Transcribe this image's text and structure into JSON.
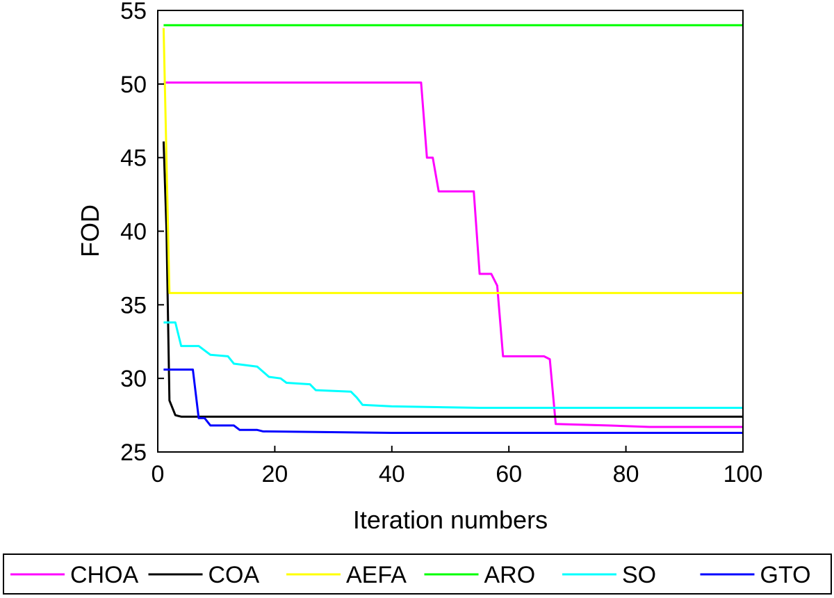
{
  "chart_data": {
    "type": "line",
    "title": "",
    "xlabel": "Iteration numbers",
    "ylabel": "FOD",
    "xlim": [
      0,
      100
    ],
    "ylim": [
      25,
      55
    ],
    "xticks": [
      0,
      20,
      40,
      60,
      80,
      100
    ],
    "yticks": [
      25,
      30,
      35,
      40,
      45,
      50,
      55
    ],
    "grid": false,
    "legend_position": "bottom",
    "series": [
      {
        "name": "CHOA",
        "color": "#ff00ff",
        "points": [
          [
            1,
            50.1
          ],
          [
            45,
            50.1
          ],
          [
            46,
            45
          ],
          [
            47,
            45
          ],
          [
            48,
            42.7
          ],
          [
            54,
            42.7
          ],
          [
            55,
            37.1
          ],
          [
            57,
            37.1
          ],
          [
            58,
            36.3
          ],
          [
            59,
            31.5
          ],
          [
            66,
            31.5
          ],
          [
            67,
            31.3
          ],
          [
            68,
            26.9
          ],
          [
            77,
            26.8
          ],
          [
            84,
            26.7
          ],
          [
            100,
            26.7
          ]
        ]
      },
      {
        "name": "COA",
        "color": "#000000",
        "points": [
          [
            1,
            46.1
          ],
          [
            1.5,
            40
          ],
          [
            2,
            28.5
          ],
          [
            3,
            27.5
          ],
          [
            4,
            27.4
          ],
          [
            100,
            27.4
          ]
        ]
      },
      {
        "name": "AEFA",
        "color": "#ffff00",
        "points": [
          [
            1,
            53.8
          ],
          [
            2,
            35.8
          ],
          [
            100,
            35.8
          ]
        ]
      },
      {
        "name": "ARO",
        "color": "#00ff00",
        "points": [
          [
            1,
            54
          ],
          [
            100,
            54
          ]
        ]
      },
      {
        "name": "SO",
        "color": "#00ffff",
        "points": [
          [
            1,
            33.8
          ],
          [
            3,
            33.8
          ],
          [
            4,
            32.2
          ],
          [
            7,
            32.2
          ],
          [
            9,
            31.6
          ],
          [
            12,
            31.5
          ],
          [
            13,
            31
          ],
          [
            17,
            30.8
          ],
          [
            19,
            30.1
          ],
          [
            21,
            30
          ],
          [
            22,
            29.7
          ],
          [
            26,
            29.6
          ],
          [
            27,
            29.2
          ],
          [
            33,
            29.1
          ],
          [
            34,
            28.7
          ],
          [
            35,
            28.2
          ],
          [
            40,
            28.1
          ],
          [
            55,
            28
          ],
          [
            100,
            28
          ]
        ]
      },
      {
        "name": "GTO",
        "color": "#0000ff",
        "points": [
          [
            1,
            30.6
          ],
          [
            6,
            30.6
          ],
          [
            7,
            27.3
          ],
          [
            8,
            27.3
          ],
          [
            9,
            26.8
          ],
          [
            13,
            26.8
          ],
          [
            14,
            26.5
          ],
          [
            17,
            26.5
          ],
          [
            18,
            26.4
          ],
          [
            40,
            26.3
          ],
          [
            100,
            26.3
          ]
        ]
      }
    ]
  }
}
